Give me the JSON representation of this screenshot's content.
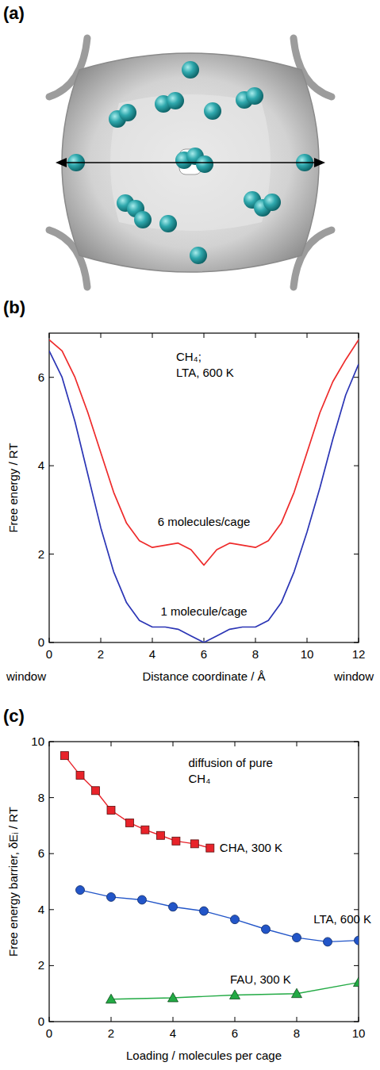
{
  "image_panel": {
    "panel_label": "(a)"
  },
  "chart_data": [
    {
      "type": "line",
      "panel_label": "(b)",
      "x_label": "Distance coordinate / Å",
      "y_label": "Free energy / RT",
      "annotations": [
        "CH₄;",
        "LTA, 600 K",
        "window",
        "window"
      ],
      "x": [
        0,
        0.5,
        1,
        1.5,
        2,
        2.5,
        3,
        3.5,
        4,
        4.5,
        5,
        5.5,
        6,
        6.5,
        7,
        7.5,
        8,
        8.5,
        9,
        9.5,
        10,
        10.5,
        11,
        11.5,
        12
      ],
      "xlim": [
        0,
        12
      ],
      "xticks": [
        0,
        2,
        4,
        6,
        8,
        10,
        12
      ],
      "ylim": [
        0,
        7
      ],
      "yticks": [
        0,
        2,
        4,
        6
      ],
      "series": [
        {
          "name": "6 molecules/cage",
          "color": "#ee2b2b",
          "values": [
            6.85,
            6.6,
            6.0,
            5.2,
            4.3,
            3.4,
            2.7,
            2.3,
            2.15,
            2.2,
            2.25,
            2.1,
            1.75,
            2.1,
            2.25,
            2.2,
            2.15,
            2.3,
            2.7,
            3.4,
            4.3,
            5.2,
            5.9,
            6.4,
            6.85
          ]
        },
        {
          "name": "1 molecule/cage",
          "color": "#2b35b5",
          "values": [
            6.6,
            6.0,
            5.0,
            3.8,
            2.6,
            1.6,
            0.9,
            0.5,
            0.35,
            0.35,
            0.3,
            0.15,
            0.0,
            0.15,
            0.3,
            0.35,
            0.35,
            0.5,
            0.9,
            1.6,
            2.5,
            3.5,
            4.6,
            5.6,
            6.3
          ]
        }
      ]
    },
    {
      "type": "line",
      "panel_label": "(c)",
      "x_label": "Loading / molecules per cage",
      "y_label": "Free energy barrier, δEᵢ / RT",
      "annotations": [
        "diffusion of pure",
        "CH₄"
      ],
      "xlim": [
        0,
        10
      ],
      "xticks": [
        0,
        2,
        4,
        6,
        8,
        10
      ],
      "ylim": [
        0,
        10
      ],
      "yticks": [
        0,
        2,
        4,
        6,
        8,
        10
      ],
      "series": [
        {
          "name": "CHA, 300 K",
          "color": "#e8232a",
          "marker": "square",
          "x": [
            0.5,
            1,
            1.5,
            2,
            2.6,
            3.1,
            3.6,
            4.1,
            4.7,
            5.2
          ],
          "values": [
            9.5,
            8.8,
            8.25,
            7.55,
            7.1,
            6.85,
            6.65,
            6.45,
            6.35,
            6.2
          ]
        },
        {
          "name": "LTA, 600 K",
          "color": "#2255c8",
          "marker": "circle",
          "x": [
            1,
            2,
            3,
            4,
            5,
            6,
            7,
            8,
            9,
            10
          ],
          "values": [
            4.7,
            4.45,
            4.35,
            4.1,
            3.95,
            3.65,
            3.3,
            3.0,
            2.85,
            2.9
          ]
        },
        {
          "name": "FAU, 300 K",
          "color": "#22aa44",
          "marker": "triangle",
          "x": [
            2,
            4,
            6,
            8,
            10
          ],
          "values": [
            0.8,
            0.85,
            0.95,
            1.0,
            1.4
          ]
        }
      ]
    }
  ]
}
